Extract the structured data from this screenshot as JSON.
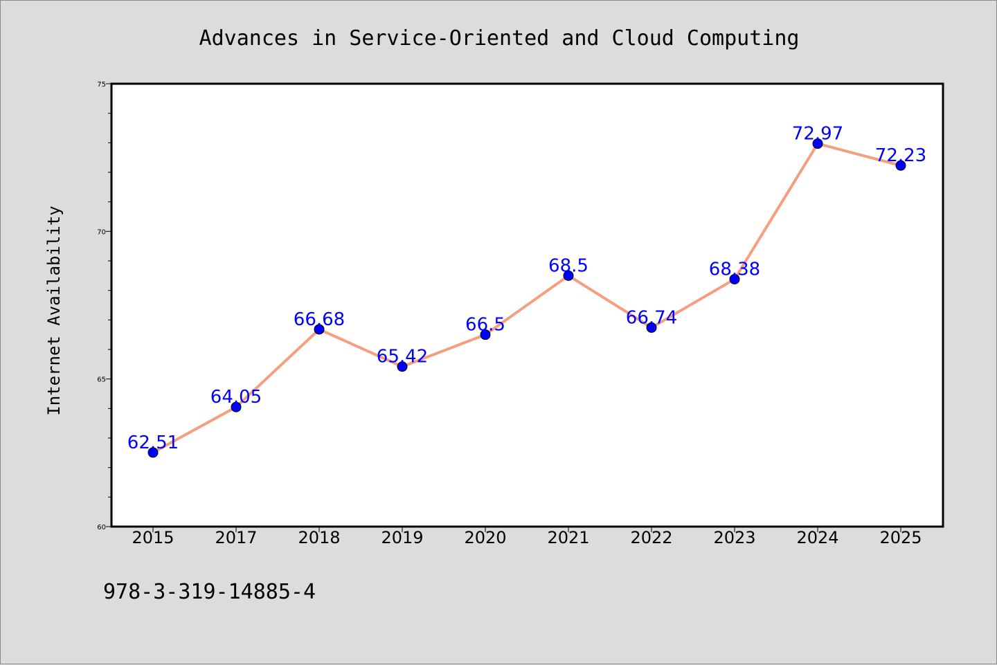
{
  "chart_data": {
    "type": "line",
    "title": "Advances in Service-Oriented and Cloud Computing",
    "xlabel": "",
    "ylabel": "Internet Availability",
    "categories": [
      "2015",
      "2017",
      "2018",
      "2019",
      "2020",
      "2021",
      "2022",
      "2023",
      "2024",
      "2025"
    ],
    "series": [
      {
        "values": [
          62.51,
          64.05,
          66.68,
          65.42,
          66.5,
          68.5,
          66.74,
          68.38,
          72.97,
          72.23
        ],
        "labels": [
          "62.51",
          "64.05",
          "66.68",
          "65.42",
          "66.5",
          "68.5",
          "66.74",
          "68.38",
          "72.97",
          "72.23"
        ],
        "line_color": "#f4a07e",
        "marker_color": "#0000ff"
      }
    ],
    "ylim": [
      60,
      75
    ],
    "yticks": [
      "60",
      "65",
      "70",
      "75"
    ],
    "grid": false,
    "legend": "none"
  },
  "footer": {
    "isbn": "978-3-319-14885-4"
  },
  "colors": {
    "background": "#dcdcdc",
    "plot_background": "#ffffff",
    "label_color": "#0000ff"
  }
}
